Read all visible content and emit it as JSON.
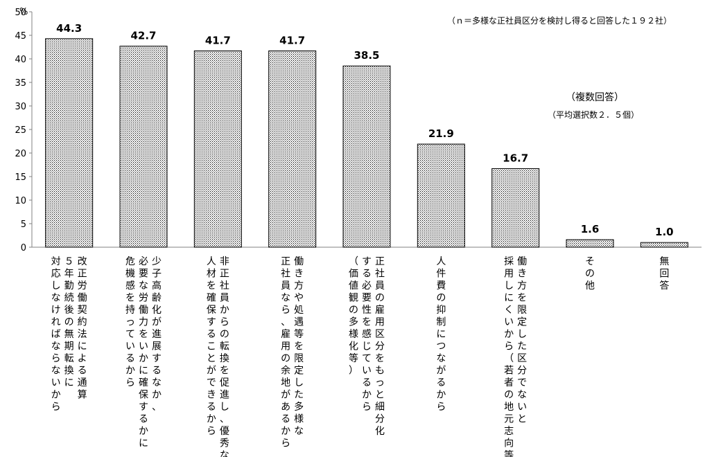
{
  "chart_data": {
    "type": "bar",
    "unit_label": "%",
    "ylim": [
      0,
      50
    ],
    "yticks": [
      "0",
      "5",
      "10",
      "15",
      "20",
      "25",
      "30",
      "35",
      "40",
      "45",
      "50"
    ],
    "grid": false,
    "categories": [
      [
        "改正労働契約法による通算",
        "５年勤続後の無期転換に",
        "対応しなければならないから"
      ],
      [
        "少子高齢化が進展するなか、",
        "必要な労働力をいかに確保するかに",
        "危機感を持っているから"
      ],
      [
        "非正社員からの転換を促進し、優秀な",
        "人材を確保することができるから"
      ],
      [
        "働き方や処遇等を限定した多様な",
        "正社員なら、雇用の余地があるから"
      ],
      [
        "正社員の雇用区分をもっと細分化",
        "する必要性を感じているから",
        "（価値観の多様化等）"
      ],
      [
        "人件費の抑制につながるから"
      ],
      [
        "働き方を限定した区分でないと",
        "採用しにくいから（若者の地元志向等）"
      ],
      [
        "その他"
      ],
      [
        "無回答"
      ]
    ],
    "values": [
      44.3,
      42.7,
      41.7,
      41.7,
      38.5,
      21.9,
      16.7,
      1.6,
      1.0
    ],
    "value_labels": [
      "44.3",
      "42.7",
      "41.7",
      "41.7",
      "38.5",
      "21.9",
      "16.7",
      "1.6",
      "1.0"
    ]
  },
  "annotations": {
    "sample_note": "（ｎ＝多様な正社員区分を検討し得ると回答した１９２社）",
    "multi_answer": "（複数回答）",
    "avg_selected": "（平均選択数２．５個）"
  },
  "colors": {
    "bar_fill_dot": "#000000",
    "bar_fill_bg": "#ffffff",
    "axis": "#808080"
  }
}
